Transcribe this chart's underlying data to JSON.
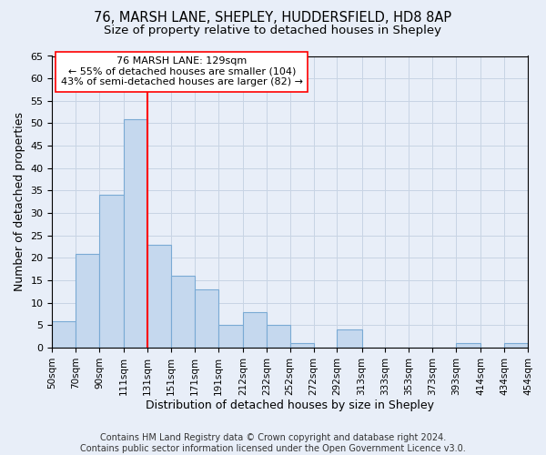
{
  "title1": "76, MARSH LANE, SHEPLEY, HUDDERSFIELD, HD8 8AP",
  "title2": "Size of property relative to detached houses in Shepley",
  "xlabel": "Distribution of detached houses by size in Shepley",
  "ylabel": "Number of detached properties",
  "bin_edges": [
    50,
    70,
    90,
    111,
    131,
    151,
    171,
    191,
    212,
    232,
    252,
    272,
    292,
    313,
    333,
    353,
    373,
    393,
    414,
    434,
    454
  ],
  "bin_labels": [
    "50sqm",
    "70sqm",
    "90sqm",
    "111sqm",
    "131sqm",
    "151sqm",
    "171sqm",
    "191sqm",
    "212sqm",
    "232sqm",
    "252sqm",
    "272sqm",
    "292sqm",
    "313sqm",
    "333sqm",
    "353sqm",
    "373sqm",
    "393sqm",
    "414sqm",
    "434sqm",
    "454sqm"
  ],
  "counts": [
    6,
    21,
    34,
    51,
    23,
    16,
    13,
    5,
    8,
    5,
    1,
    0,
    4,
    0,
    0,
    0,
    0,
    1,
    0,
    1
  ],
  "bar_color": "#c5d8ee",
  "bar_edge_color": "#7aaad4",
  "property_line_x": 131,
  "annotation_text": "76 MARSH LANE: 129sqm\n← 55% of detached houses are smaller (104)\n43% of semi-detached houses are larger (82) →",
  "annotation_box_color": "white",
  "annotation_box_edge_color": "red",
  "vline_color": "red",
  "ylim": [
    0,
    65
  ],
  "yticks": [
    0,
    5,
    10,
    15,
    20,
    25,
    30,
    35,
    40,
    45,
    50,
    55,
    60,
    65
  ],
  "grid_color": "#c8d4e4",
  "background_color": "#e8eef8",
  "footer_text": "Contains HM Land Registry data © Crown copyright and database right 2024.\nContains public sector information licensed under the Open Government Licence v3.0.",
  "title1_fontsize": 10.5,
  "title2_fontsize": 9.5,
  "annotation_fontsize": 8,
  "footer_fontsize": 7,
  "ylabel_fontsize": 9,
  "xlabel_fontsize": 9,
  "ytick_fontsize": 8,
  "xtick_fontsize": 7.5
}
